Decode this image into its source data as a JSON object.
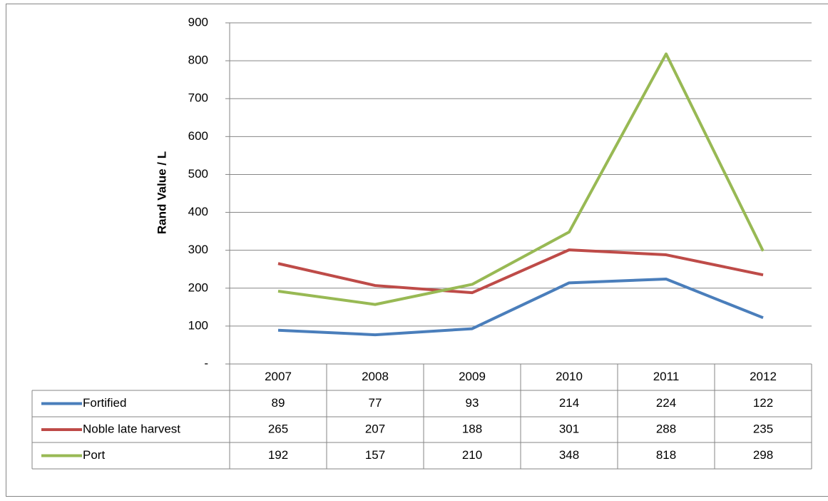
{
  "chart_data": {
    "type": "line",
    "y_axis_label": "Rand Value / L",
    "categories": [
      "2007",
      "2008",
      "2009",
      "2010",
      "2011",
      "2012"
    ],
    "series": [
      {
        "name": "Fortified",
        "color": "#4a7ebb",
        "values": [
          89,
          77,
          93,
          214,
          224,
          122
        ]
      },
      {
        "name": "Noble late harvest",
        "color": "#be4b48",
        "values": [
          265,
          207,
          188,
          301,
          288,
          235
        ]
      },
      {
        "name": "Port",
        "color": "#98b954",
        "values": [
          192,
          157,
          210,
          348,
          818,
          298
        ]
      }
    ],
    "ylim": [
      0,
      900
    ],
    "yticks": [
      {
        "value": 0,
        "label": "-"
      },
      100,
      200,
      300,
      400,
      500,
      600,
      700,
      800,
      900
    ],
    "grid": true
  }
}
